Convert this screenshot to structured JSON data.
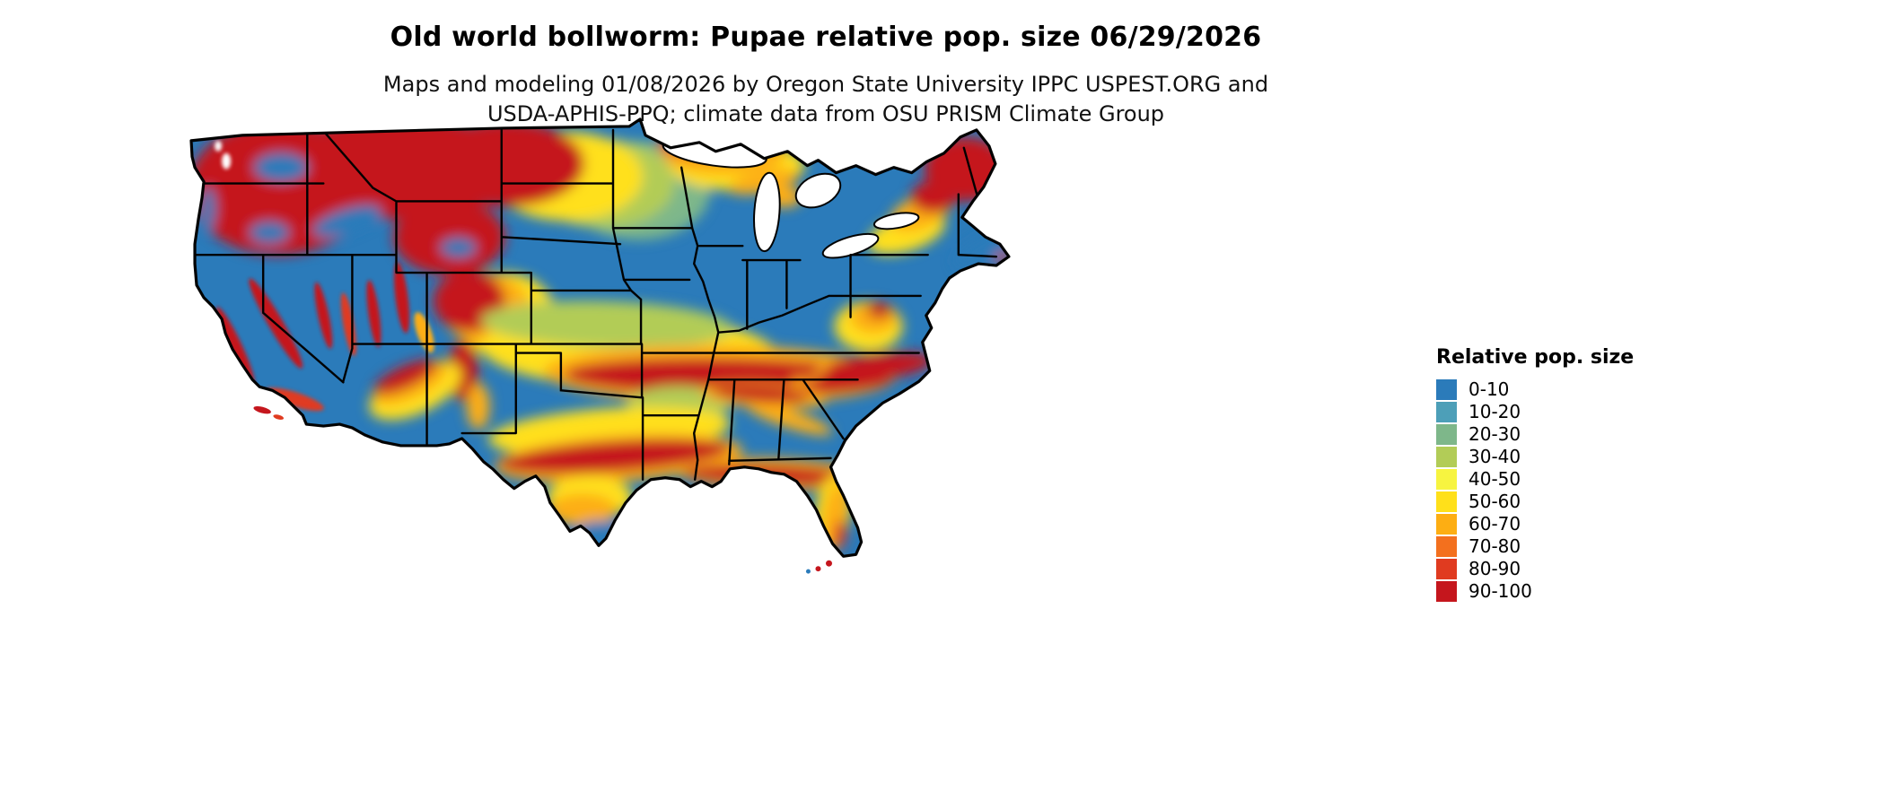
{
  "header": {
    "title": "Old world bollworm: Pupae relative pop. size 06/29/2026",
    "subtitle_line1": "Maps and modeling 01/08/2026 by Oregon State University IPPC USPEST.ORG and",
    "subtitle_line2": "USDA-APHIS-PPQ; climate data from OSU PRISM Climate Group"
  },
  "map": {
    "region": "contiguous-united-states"
  },
  "legend": {
    "title": "Relative pop. size",
    "entries": [
      {
        "label": "0-10",
        "color": "#2b7bba"
      },
      {
        "label": "10-20",
        "color": "#4d9fb8"
      },
      {
        "label": "20-30",
        "color": "#7eb78a"
      },
      {
        "label": "30-40",
        "color": "#b2cc57"
      },
      {
        "label": "40-50",
        "color": "#f7f440"
      },
      {
        "label": "50-60",
        "color": "#ffe01a"
      },
      {
        "label": "60-70",
        "color": "#fdae13"
      },
      {
        "label": "70-80",
        "color": "#f3701e"
      },
      {
        "label": "80-90",
        "color": "#e03b20"
      },
      {
        "label": "90-100",
        "color": "#c5161d"
      }
    ]
  }
}
